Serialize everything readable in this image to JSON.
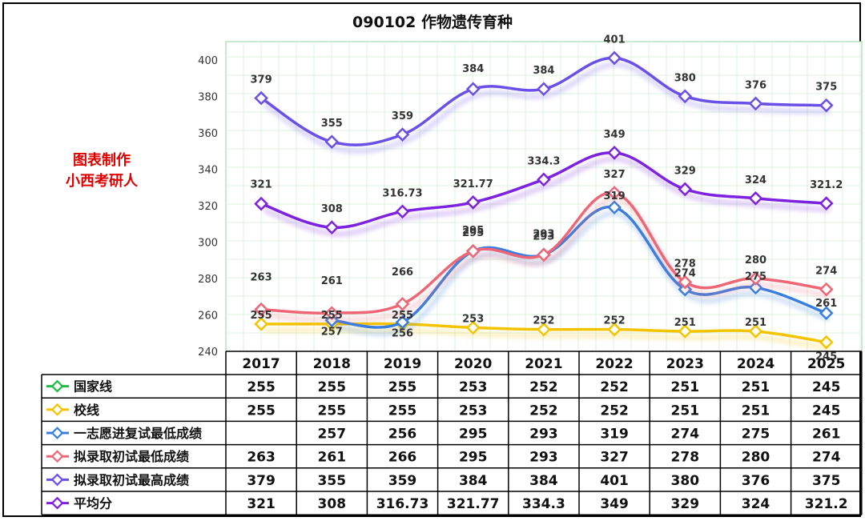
{
  "chart_data": {
    "type": "line",
    "title": "090102 作物遗传育种",
    "watermark": [
      "图表制作",
      "小西考研人"
    ],
    "categories": [
      "2017",
      "2018",
      "2019",
      "2020",
      "2021",
      "2022",
      "2023",
      "2024",
      "2025"
    ],
    "ylim": [
      240,
      410
    ],
    "yticks": [
      240,
      260,
      280,
      300,
      320,
      340,
      360,
      380,
      400
    ],
    "grid": true,
    "legend": "data-table-left",
    "series": [
      {
        "name": "国家线",
        "color": "#22bb44",
        "values": [
          255,
          255,
          255,
          253,
          252,
          252,
          251,
          251,
          245
        ],
        "plotted": false
      },
      {
        "name": "校线",
        "color": "#f5c400",
        "values": [
          255,
          255,
          255,
          253,
          252,
          252,
          251,
          251,
          245
        ],
        "plotted": true
      },
      {
        "name": "一志愿进复试最低成绩",
        "color": "#3a7fe0",
        "values": [
          null,
          257,
          256,
          295,
          293,
          319,
          274,
          275,
          261
        ],
        "plotted": true
      },
      {
        "name": "拟录取初试最低成绩",
        "color": "#ef6777",
        "values": [
          263,
          261,
          266,
          295,
          293,
          327,
          278,
          280,
          274
        ],
        "plotted": true
      },
      {
        "name": "拟录取初试最高成绩",
        "color": "#6a4fe8",
        "values": [
          379,
          355,
          359,
          384,
          384,
          401,
          380,
          376,
          375
        ],
        "plotted": true
      },
      {
        "name": "平均分",
        "color": "#7d22e0",
        "values": [
          321,
          308,
          316.73,
          321.77,
          334.3,
          349,
          329,
          324,
          321.2
        ],
        "plotted": true
      }
    ]
  },
  "table_cells": [
    [
      "255",
      "255",
      "255",
      "253",
      "252",
      "252",
      "251",
      "251",
      "245"
    ],
    [
      "255",
      "255",
      "255",
      "253",
      "252",
      "252",
      "251",
      "251",
      "245"
    ],
    [
      "",
      "257",
      "256",
      "295",
      "293",
      "319",
      "274",
      "275",
      "261"
    ],
    [
      "263",
      "261",
      "266",
      "295",
      "293",
      "327",
      "278",
      "280",
      "274"
    ],
    [
      "379",
      "355",
      "359",
      "384",
      "384",
      "401",
      "380",
      "376",
      "375"
    ],
    [
      "321",
      "308",
      "316.73",
      "321.77",
      "334.3",
      "349",
      "329",
      "324",
      "321.2"
    ]
  ]
}
